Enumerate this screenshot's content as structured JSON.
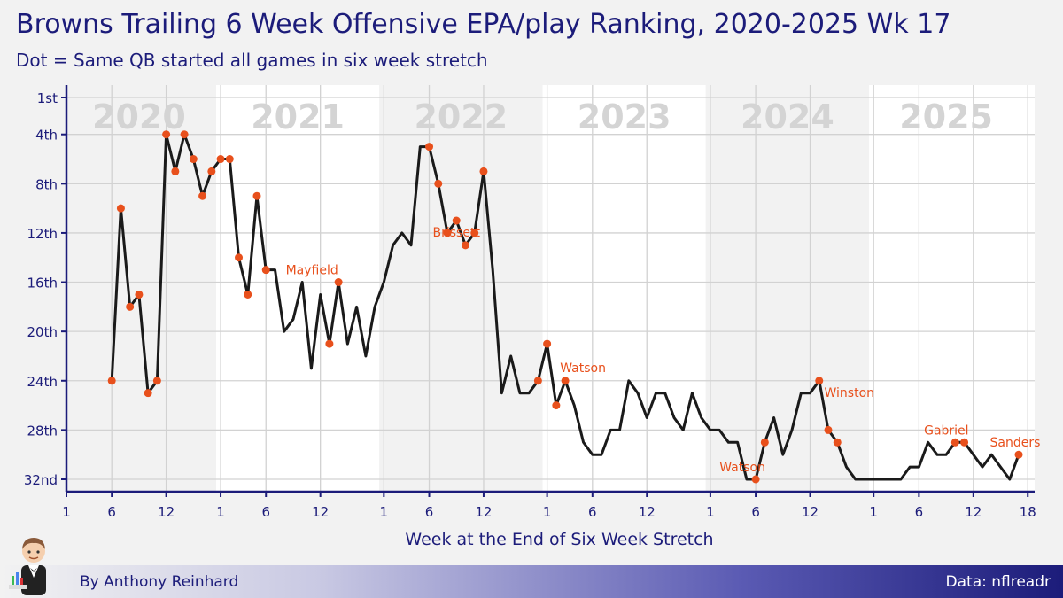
{
  "header": {
    "title": "Browns Trailing 6 Week Offensive EPA/play Ranking, 2020-2025 Wk 17",
    "subtitle": "Dot = Same QB started all games in six week stretch"
  },
  "footer": {
    "byline": "By Anthony Reinhard",
    "source": "Data: nflreadr"
  },
  "colors": {
    "line": "#1a1a1a",
    "dot": "#e8501c",
    "label": "#e8501c",
    "title": "#1c1c7a",
    "season_bg_even": "#f2f2f2",
    "season_bg_odd": "#ffffff",
    "year_label": "#d4d4d4"
  },
  "chart_data": {
    "type": "line",
    "title": "Browns Trailing 6 Week Offensive EPA/play Ranking, 2020-2025 Wk 17",
    "subtitle": "Dot = Same QB started all games in six week stretch",
    "xlabel": "Week at the End of Six Week Stretch",
    "ylabel": "",
    "y_reversed": true,
    "ylim": [
      1,
      32
    ],
    "y_ticks": [
      1,
      4,
      8,
      12,
      16,
      20,
      24,
      28,
      32
    ],
    "y_tick_labels": [
      "1st",
      "4th",
      "8th",
      "12th",
      "16th",
      "20th",
      "24th",
      "28th",
      "32nd"
    ],
    "x_tick_labels": [
      "1",
      "6",
      "12",
      "1",
      "6",
      "12",
      "1",
      "6",
      "12",
      "1",
      "6",
      "12",
      "1",
      "6",
      "12",
      "1",
      "6",
      "12",
      "18"
    ],
    "grid": true,
    "seasons": [
      {
        "year": "2020",
        "weeks": 17
      },
      {
        "year": "2021",
        "weeks": 18
      },
      {
        "year": "2022",
        "weeks": 18
      },
      {
        "year": "2023",
        "weeks": 18
      },
      {
        "year": "2024",
        "weeks": 18
      },
      {
        "year": "2025",
        "weeks": 17
      }
    ],
    "series": [
      {
        "points": [
          {
            "season": "2020",
            "week": 6,
            "rank": 24,
            "dot": true
          },
          {
            "season": "2020",
            "week": 7,
            "rank": 10,
            "dot": true
          },
          {
            "season": "2020",
            "week": 8,
            "rank": 18,
            "dot": true
          },
          {
            "season": "2020",
            "week": 9,
            "rank": 17,
            "dot": true
          },
          {
            "season": "2020",
            "week": 10,
            "rank": 25,
            "dot": true
          },
          {
            "season": "2020",
            "week": 11,
            "rank": 24,
            "dot": true
          },
          {
            "season": "2020",
            "week": 12,
            "rank": 4,
            "dot": true
          },
          {
            "season": "2020",
            "week": 13,
            "rank": 7,
            "dot": true
          },
          {
            "season": "2020",
            "week": 14,
            "rank": 4,
            "dot": true
          },
          {
            "season": "2020",
            "week": 15,
            "rank": 6,
            "dot": true
          },
          {
            "season": "2020",
            "week": 16,
            "rank": 9,
            "dot": true
          },
          {
            "season": "2020",
            "week": 17,
            "rank": 7,
            "dot": true
          },
          {
            "season": "2021",
            "week": 1,
            "rank": 6,
            "dot": true
          },
          {
            "season": "2021",
            "week": 2,
            "rank": 6,
            "dot": true
          },
          {
            "season": "2021",
            "week": 3,
            "rank": 14,
            "dot": true
          },
          {
            "season": "2021",
            "week": 4,
            "rank": 17,
            "dot": true
          },
          {
            "season": "2021",
            "week": 5,
            "rank": 9,
            "dot": true
          },
          {
            "season": "2021",
            "week": 6,
            "rank": 15,
            "dot": true
          },
          {
            "season": "2021",
            "week": 7,
            "rank": 15,
            "dot": false
          },
          {
            "season": "2021",
            "week": 8,
            "rank": 20,
            "dot": false
          },
          {
            "season": "2021",
            "week": 9,
            "rank": 19,
            "dot": false
          },
          {
            "season": "2021",
            "week": 10,
            "rank": 16,
            "dot": false
          },
          {
            "season": "2021",
            "week": 11,
            "rank": 23,
            "dot": false
          },
          {
            "season": "2021",
            "week": 12,
            "rank": 17,
            "dot": false
          },
          {
            "season": "2021",
            "week": 13,
            "rank": 21,
            "dot": true
          },
          {
            "season": "2021",
            "week": 14,
            "rank": 16,
            "dot": true
          },
          {
            "season": "2021",
            "week": 15,
            "rank": 21,
            "dot": false
          },
          {
            "season": "2021",
            "week": 16,
            "rank": 18,
            "dot": false
          },
          {
            "season": "2021",
            "week": 17,
            "rank": 22,
            "dot": false
          },
          {
            "season": "2021",
            "week": 18,
            "rank": 18,
            "dot": false
          },
          {
            "season": "2022",
            "week": 1,
            "rank": 16,
            "dot": false
          },
          {
            "season": "2022",
            "week": 2,
            "rank": 13,
            "dot": false
          },
          {
            "season": "2022",
            "week": 3,
            "rank": 12,
            "dot": false
          },
          {
            "season": "2022",
            "week": 4,
            "rank": 13,
            "dot": false
          },
          {
            "season": "2022",
            "week": 5,
            "rank": 5,
            "dot": false
          },
          {
            "season": "2022",
            "week": 6,
            "rank": 5,
            "dot": true
          },
          {
            "season": "2022",
            "week": 7,
            "rank": 8,
            "dot": true
          },
          {
            "season": "2022",
            "week": 8,
            "rank": 12,
            "dot": true
          },
          {
            "season": "2022",
            "week": 9,
            "rank": 11,
            "dot": true
          },
          {
            "season": "2022",
            "week": 10,
            "rank": 13,
            "dot": true
          },
          {
            "season": "2022",
            "week": 11,
            "rank": 12,
            "dot": true
          },
          {
            "season": "2022",
            "week": 12,
            "rank": 7,
            "dot": true
          },
          {
            "season": "2022",
            "week": 13,
            "rank": 15,
            "dot": false
          },
          {
            "season": "2022",
            "week": 14,
            "rank": 25,
            "dot": false
          },
          {
            "season": "2022",
            "week": 15,
            "rank": 22,
            "dot": false
          },
          {
            "season": "2022",
            "week": 16,
            "rank": 25,
            "dot": false
          },
          {
            "season": "2022",
            "week": 17,
            "rank": 25,
            "dot": false
          },
          {
            "season": "2022",
            "week": 18,
            "rank": 24,
            "dot": true
          },
          {
            "season": "2023",
            "week": 1,
            "rank": 21,
            "dot": true
          },
          {
            "season": "2023",
            "week": 2,
            "rank": 26,
            "dot": true
          },
          {
            "season": "2023",
            "week": 3,
            "rank": 24,
            "dot": true
          },
          {
            "season": "2023",
            "week": 4,
            "rank": 26,
            "dot": false
          },
          {
            "season": "2023",
            "week": 5,
            "rank": 29,
            "dot": false
          },
          {
            "season": "2023",
            "week": 6,
            "rank": 30,
            "dot": false
          },
          {
            "season": "2023",
            "week": 7,
            "rank": 30,
            "dot": false
          },
          {
            "season": "2023",
            "week": 8,
            "rank": 28,
            "dot": false
          },
          {
            "season": "2023",
            "week": 9,
            "rank": 28,
            "dot": false
          },
          {
            "season": "2023",
            "week": 10,
            "rank": 24,
            "dot": false
          },
          {
            "season": "2023",
            "week": 11,
            "rank": 25,
            "dot": false
          },
          {
            "season": "2023",
            "week": 12,
            "rank": 27,
            "dot": false
          },
          {
            "season": "2023",
            "week": 13,
            "rank": 25,
            "dot": false
          },
          {
            "season": "2023",
            "week": 14,
            "rank": 25,
            "dot": false
          },
          {
            "season": "2023",
            "week": 15,
            "rank": 27,
            "dot": false
          },
          {
            "season": "2023",
            "week": 16,
            "rank": 28,
            "dot": false
          },
          {
            "season": "2023",
            "week": 17,
            "rank": 25,
            "dot": false
          },
          {
            "season": "2023",
            "week": 18,
            "rank": 27,
            "dot": false
          },
          {
            "season": "2024",
            "week": 1,
            "rank": 28,
            "dot": false
          },
          {
            "season": "2024",
            "week": 2,
            "rank": 28,
            "dot": false
          },
          {
            "season": "2024",
            "week": 3,
            "rank": 29,
            "dot": false
          },
          {
            "season": "2024",
            "week": 4,
            "rank": 29,
            "dot": false
          },
          {
            "season": "2024",
            "week": 5,
            "rank": 32,
            "dot": false
          },
          {
            "season": "2024",
            "week": 6,
            "rank": 32,
            "dot": true
          },
          {
            "season": "2024",
            "week": 7,
            "rank": 29,
            "dot": true
          },
          {
            "season": "2024",
            "week": 8,
            "rank": 27,
            "dot": false
          },
          {
            "season": "2024",
            "week": 9,
            "rank": 30,
            "dot": false
          },
          {
            "season": "2024",
            "week": 10,
            "rank": 28,
            "dot": false
          },
          {
            "season": "2024",
            "week": 11,
            "rank": 25,
            "dot": false
          },
          {
            "season": "2024",
            "week": 12,
            "rank": 25,
            "dot": false
          },
          {
            "season": "2024",
            "week": 13,
            "rank": 24,
            "dot": true
          },
          {
            "season": "2024",
            "week": 14,
            "rank": 28,
            "dot": true
          },
          {
            "season": "2024",
            "week": 15,
            "rank": 29,
            "dot": true
          },
          {
            "season": "2024",
            "week": 16,
            "rank": 31,
            "dot": false
          },
          {
            "season": "2024",
            "week": 17,
            "rank": 32,
            "dot": false
          },
          {
            "season": "2024",
            "week": 18,
            "rank": 32,
            "dot": false
          },
          {
            "season": "2025",
            "week": 1,
            "rank": 32,
            "dot": false
          },
          {
            "season": "2025",
            "week": 2,
            "rank": 32,
            "dot": false
          },
          {
            "season": "2025",
            "week": 3,
            "rank": 32,
            "dot": false
          },
          {
            "season": "2025",
            "week": 4,
            "rank": 32,
            "dot": false
          },
          {
            "season": "2025",
            "week": 5,
            "rank": 31,
            "dot": false
          },
          {
            "season": "2025",
            "week": 6,
            "rank": 31,
            "dot": false
          },
          {
            "season": "2025",
            "week": 7,
            "rank": 29,
            "dot": false
          },
          {
            "season": "2025",
            "week": 8,
            "rank": 30,
            "dot": false
          },
          {
            "season": "2025",
            "week": 9,
            "rank": 30,
            "dot": false
          },
          {
            "season": "2025",
            "week": 10,
            "rank": 29,
            "dot": true
          },
          {
            "season": "2025",
            "week": 11,
            "rank": 29,
            "dot": true
          },
          {
            "season": "2025",
            "week": 12,
            "rank": 30,
            "dot": false
          },
          {
            "season": "2025",
            "week": 13,
            "rank": 31,
            "dot": false
          },
          {
            "season": "2025",
            "week": 14,
            "rank": 30,
            "dot": false
          },
          {
            "season": "2025",
            "week": 15,
            "rank": 31,
            "dot": false
          },
          {
            "season": "2025",
            "week": 16,
            "rank": 32,
            "dot": false
          },
          {
            "season": "2025",
            "week": 17,
            "rank": 30,
            "dot": true
          }
        ]
      }
    ],
    "annotations": [
      {
        "text": "Mayfield",
        "season": "2021",
        "week": 14,
        "rank": 16
      },
      {
        "text": "Brissett",
        "season": "2022",
        "week": 9,
        "rank": 11
      },
      {
        "text": "Watson",
        "season": "2023",
        "week": 3,
        "rank": 24
      },
      {
        "text": "Watson",
        "season": "2024",
        "week": 6,
        "rank": 32
      },
      {
        "text": "Winston",
        "season": "2024",
        "week": 13,
        "rank": 24
      },
      {
        "text": "Gabriel",
        "season": "2025",
        "week": 10,
        "rank": 29
      },
      {
        "text": "Sanders",
        "season": "2025",
        "week": 17,
        "rank": 30
      }
    ]
  }
}
